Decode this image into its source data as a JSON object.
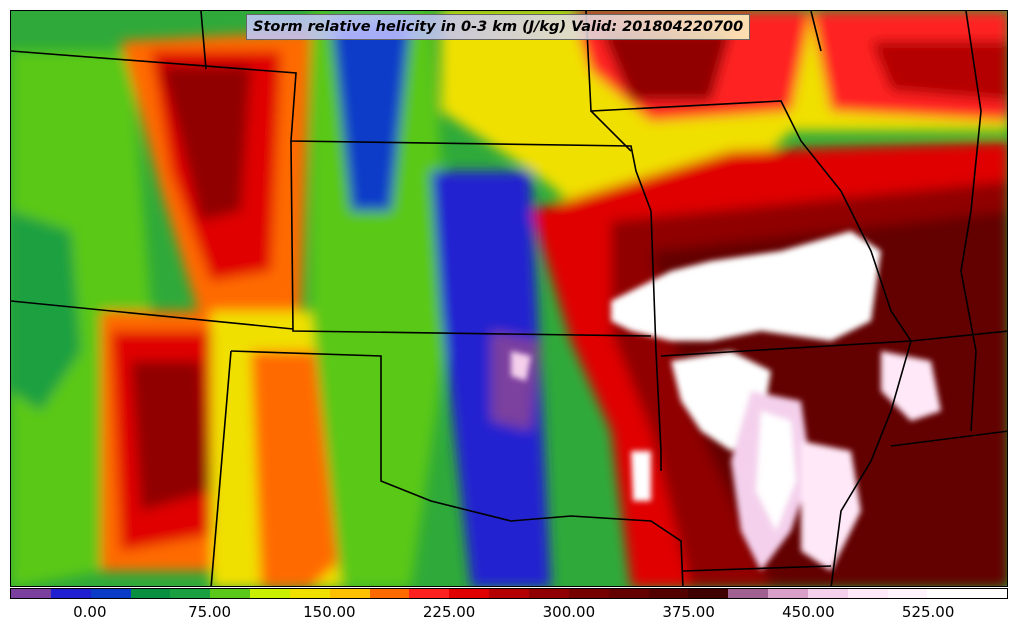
{
  "title": "Storm relative helicity in 0-3 km (J/kg) Valid: 201804220700",
  "colorbar": {
    "colors": [
      "#7b3f9e",
      "#2020d0",
      "#0a3cc8",
      "#089040",
      "#1aa040",
      "#5ac818",
      "#c8f000",
      "#f0e000",
      "#ffc000",
      "#ff6a00",
      "#ff2020",
      "#e00000",
      "#b40000",
      "#900000",
      "#760000",
      "#640000",
      "#520000",
      "#3e0000",
      "#a06090",
      "#d8a0c8",
      "#f4d0ec",
      "#ffe8f8",
      "#fff4fc",
      "#ffffff",
      "#ffffff"
    ],
    "tick_labels": [
      "0.00",
      "75.00",
      "150.00",
      "225.00",
      "300.00",
      "375.00",
      "450.00",
      "525.00"
    ],
    "tick_values": [
      0,
      75,
      150,
      225,
      300,
      375,
      450,
      525
    ],
    "value_min": -50,
    "value_max": 575
  }
}
